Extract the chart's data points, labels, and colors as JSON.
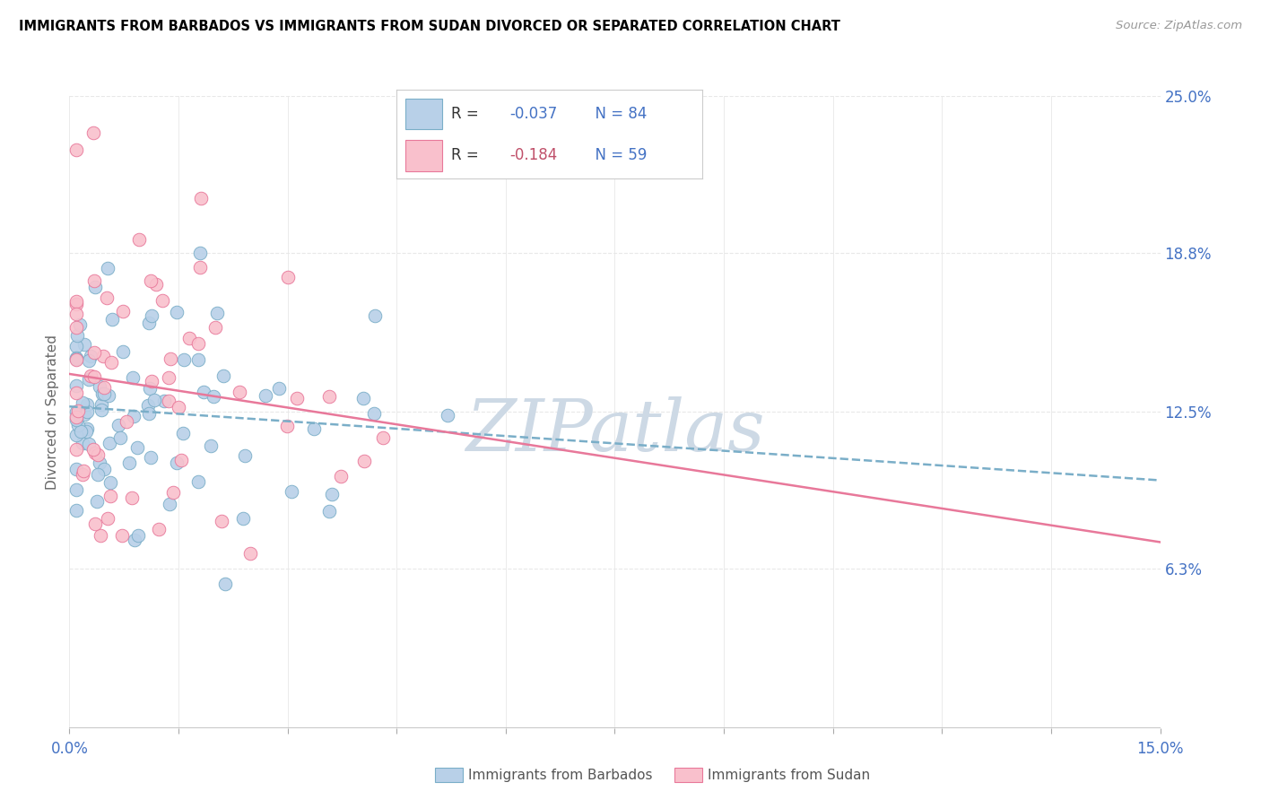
{
  "title": "IMMIGRANTS FROM BARBADOS VS IMMIGRANTS FROM SUDAN DIVORCED OR SEPARATED CORRELATION CHART",
  "source": "Source: ZipAtlas.com",
  "ylabel": "Divorced or Separated",
  "xlim": [
    0.0,
    0.15
  ],
  "ylim": [
    0.0,
    0.25
  ],
  "ytick_right_labels": [
    "6.3%",
    "12.5%",
    "18.8%",
    "25.0%"
  ],
  "ytick_right_values": [
    0.063,
    0.125,
    0.188,
    0.25
  ],
  "R_barbados": -0.037,
  "N_barbados": 84,
  "R_sudan": -0.184,
  "N_sudan": 59,
  "color_barbados": "#b8d0e8",
  "color_sudan": "#f9c0cc",
  "edge_color_barbados": "#7aaec8",
  "edge_color_sudan": "#e8789a",
  "line_color_barbados": "#7aaec8",
  "line_color_sudan": "#e8789a",
  "watermark_color": "#cdd9e5",
  "legend_box_color_barbados": "#b8d0e8",
  "legend_box_color_sudan": "#f9c0cc",
  "legend_R_color_barbados": "#4472c4",
  "legend_R_color_sudan": "#c0506a",
  "legend_N_color": "#4472c4",
  "axis_label_color": "#4472c4",
  "grid_color": "#e8e8e8",
  "bottom_legend_label_color": "#555555"
}
